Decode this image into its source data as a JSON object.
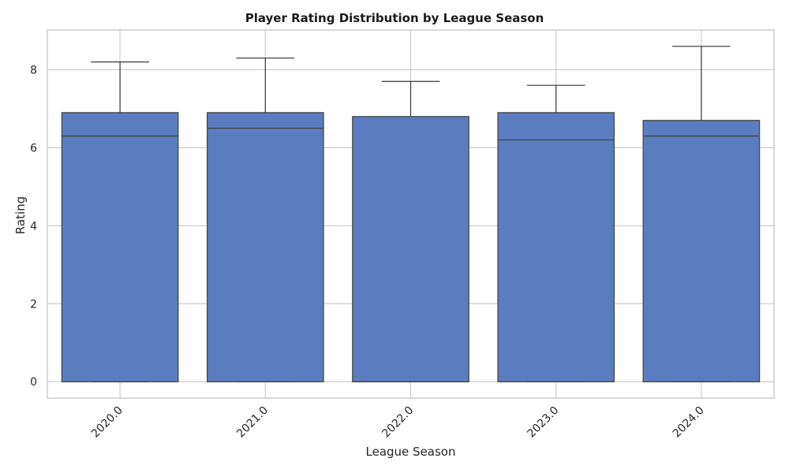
{
  "chart_data": {
    "type": "box",
    "title": "Player Rating Distribution by League Season",
    "xlabel": "League Season",
    "ylabel": "Rating",
    "categories": [
      "2020.0",
      "2021.0",
      "2022.0",
      "2023.0",
      "2024.0"
    ],
    "boxes": [
      {
        "category": "2020.0",
        "whisker_low": 0,
        "q1": 0,
        "median": 6.3,
        "q3": 6.9,
        "whisker_high": 8.2
      },
      {
        "category": "2021.0",
        "whisker_low": 0,
        "q1": 0,
        "median": 6.5,
        "q3": 6.9,
        "whisker_high": 8.3
      },
      {
        "category": "2022.0",
        "whisker_low": 0,
        "q1": 0,
        "median": 0,
        "q3": 6.8,
        "whisker_high": 7.7
      },
      {
        "category": "2023.0",
        "whisker_low": 0,
        "q1": 0,
        "median": 6.2,
        "q3": 6.9,
        "whisker_high": 7.6
      },
      {
        "category": "2024.0",
        "whisker_low": 0,
        "q1": 0,
        "median": 6.3,
        "q3": 6.7,
        "whisker_high": 8.6
      }
    ],
    "ylim": [
      -0.42,
      9.02
    ],
    "yticks": [
      0,
      2,
      4,
      6,
      8
    ],
    "grid": true,
    "legend": "none",
    "colors": {
      "box_fill": "#5a7dbf",
      "box_edge": "#464646",
      "grid": "#cccccc",
      "axes_edge": "#cccccc",
      "background": "#ffffff"
    }
  }
}
